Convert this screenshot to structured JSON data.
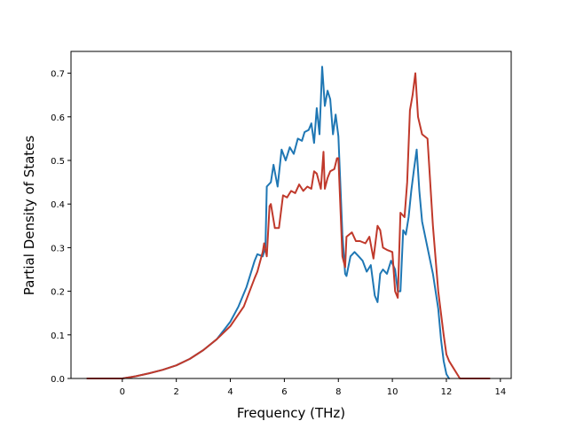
{
  "chart_data": {
    "type": "line",
    "title": "",
    "xlabel": "Frequency (THz)",
    "ylabel": "Partial Density of States",
    "xlim": [
      -1.9,
      14.4
    ],
    "ylim": [
      0.0,
      0.75
    ],
    "x_ticks": [
      0,
      2,
      4,
      6,
      8,
      10,
      12,
      14
    ],
    "y_ticks": [
      0.0,
      0.1,
      0.2,
      0.3,
      0.4,
      0.5,
      0.6,
      0.7
    ],
    "x_tick_labels": [
      "0",
      "2",
      "4",
      "6",
      "8",
      "10",
      "12",
      "14"
    ],
    "y_tick_labels": [
      "0.0",
      "0.1",
      "0.2",
      "0.3",
      "0.4",
      "0.5",
      "0.6",
      "0.7"
    ],
    "grid": false,
    "legend": "none",
    "series": [
      {
        "color": "#1f77b4",
        "x": [
          -1.3,
          0.0,
          0.5,
          1.0,
          1.5,
          2.0,
          2.5,
          3.0,
          3.5,
          4.0,
          4.3,
          4.6,
          4.9,
          5.0,
          5.2,
          5.3,
          5.35,
          5.5,
          5.6,
          5.75,
          5.9,
          6.05,
          6.2,
          6.35,
          6.5,
          6.65,
          6.75,
          6.9,
          7.0,
          7.1,
          7.2,
          7.3,
          7.4,
          7.5,
          7.6,
          7.7,
          7.8,
          7.9,
          8.0,
          8.05,
          8.15,
          8.25,
          8.3,
          8.45,
          8.6,
          8.75,
          8.9,
          9.05,
          9.2,
          9.35,
          9.45,
          9.55,
          9.65,
          9.8,
          9.95,
          10.1,
          10.2,
          10.3,
          10.4,
          10.5,
          10.6,
          10.7,
          10.8,
          10.9,
          11.0,
          11.1,
          11.3,
          11.5,
          11.7,
          11.8,
          11.9,
          12.0,
          12.1
        ],
        "y": [
          0.0,
          0.0,
          0.005,
          0.012,
          0.02,
          0.03,
          0.045,
          0.065,
          0.09,
          0.13,
          0.165,
          0.21,
          0.27,
          0.285,
          0.28,
          0.3,
          0.44,
          0.45,
          0.49,
          0.44,
          0.525,
          0.5,
          0.53,
          0.515,
          0.55,
          0.545,
          0.565,
          0.57,
          0.585,
          0.54,
          0.62,
          0.56,
          0.715,
          0.625,
          0.66,
          0.64,
          0.56,
          0.605,
          0.555,
          0.48,
          0.33,
          0.24,
          0.235,
          0.28,
          0.29,
          0.28,
          0.27,
          0.245,
          0.26,
          0.19,
          0.175,
          0.24,
          0.25,
          0.24,
          0.27,
          0.25,
          0.2,
          0.2,
          0.34,
          0.33,
          0.37,
          0.43,
          0.48,
          0.525,
          0.43,
          0.36,
          0.3,
          0.24,
          0.16,
          0.09,
          0.04,
          0.01,
          0.0
        ]
      },
      {
        "color": "#c0392b",
        "x": [
          -1.3,
          0.0,
          0.5,
          1.0,
          1.5,
          2.0,
          2.5,
          3.0,
          3.5,
          4.0,
          4.5,
          4.9,
          5.0,
          5.2,
          5.25,
          5.35,
          5.45,
          5.5,
          5.65,
          5.8,
          5.95,
          6.1,
          6.25,
          6.4,
          6.55,
          6.7,
          6.85,
          7.0,
          7.1,
          7.2,
          7.35,
          7.45,
          7.5,
          7.6,
          7.7,
          7.85,
          7.95,
          8.0,
          8.15,
          8.25,
          8.3,
          8.5,
          8.65,
          8.8,
          9.0,
          9.15,
          9.3,
          9.45,
          9.55,
          9.65,
          9.8,
          10.0,
          10.1,
          10.2,
          10.3,
          10.45,
          10.55,
          10.65,
          10.75,
          10.85,
          10.95,
          11.1,
          11.3,
          11.5,
          11.7,
          11.9,
          12.0,
          12.1,
          12.3,
          12.5,
          13.6
        ],
        "y": [
          0.0,
          0.0,
          0.005,
          0.012,
          0.02,
          0.03,
          0.045,
          0.065,
          0.09,
          0.12,
          0.165,
          0.23,
          0.245,
          0.29,
          0.31,
          0.28,
          0.395,
          0.4,
          0.345,
          0.345,
          0.42,
          0.415,
          0.43,
          0.425,
          0.445,
          0.43,
          0.44,
          0.435,
          0.475,
          0.47,
          0.435,
          0.52,
          0.435,
          0.46,
          0.475,
          0.48,
          0.505,
          0.505,
          0.28,
          0.255,
          0.325,
          0.335,
          0.315,
          0.315,
          0.31,
          0.325,
          0.275,
          0.35,
          0.34,
          0.3,
          0.295,
          0.29,
          0.2,
          0.185,
          0.38,
          0.37,
          0.45,
          0.615,
          0.65,
          0.7,
          0.6,
          0.56,
          0.55,
          0.35,
          0.2,
          0.1,
          0.055,
          0.04,
          0.02,
          0.0,
          0.0
        ]
      }
    ]
  }
}
